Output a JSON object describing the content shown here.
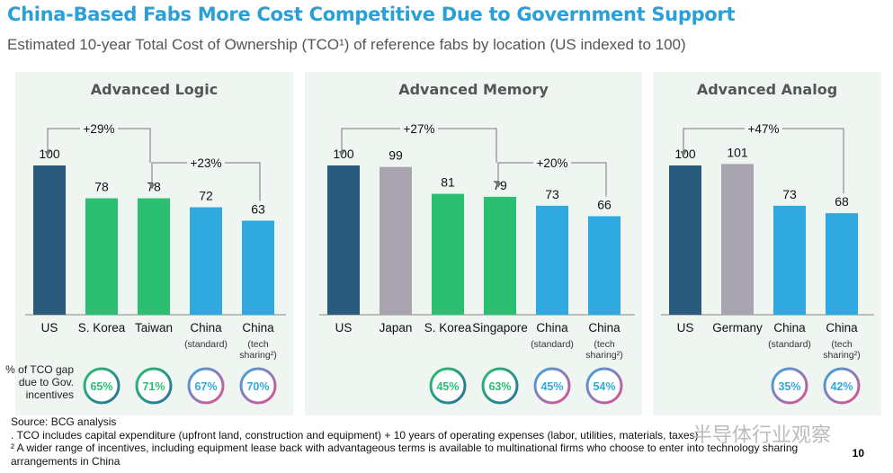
{
  "header": {
    "title": "China-Based Fabs More Cost Competitive Due to Government Support",
    "subtitle": "Estimated 10-year Total Cost of Ownership (TCO¹) of reference fabs by location (US indexed to 100)"
  },
  "gap_label": "% of TCO gap due  to Gov. incentives",
  "footer": {
    "source": "Source: BCG analysis",
    "note1": ". TCO includes capital expenditure (upfront land, construction and equipment) + 10 years of operating expenses (labor, utilities, materials, taxes)",
    "note2": "² A wider range of incentives, including equipment lease back with advantageous terms is available to multinational firms who choose to enter into technology sharing arrangements in China",
    "page": "10",
    "watermark": "半导体行业观察"
  },
  "colors": {
    "us": "#2a5b7c",
    "grey": "#a9a5b0",
    "green": "#2bbf72",
    "blue": "#2fa9e0",
    "title": "#2a9fd8"
  },
  "chart_data": [
    {
      "type": "bar",
      "title": "Advanced Logic",
      "ylim": [
        0,
        100
      ],
      "categories": [
        "US",
        "S. Korea",
        "Taiwan",
        "China",
        "China"
      ],
      "sublabels": [
        "",
        "",
        "",
        "(standard)",
        "(tech sharing²)"
      ],
      "values": [
        100,
        78,
        78,
        72,
        63
      ],
      "colors": [
        "us",
        "green",
        "green",
        "blue",
        "blue"
      ],
      "gap": [
        null,
        "65%",
        "71%",
        "67%",
        "70%"
      ],
      "annotations": [
        {
          "text": "+29%",
          "from": 2,
          "to": 0
        },
        {
          "text": "+23%",
          "from": 4,
          "to": 2
        }
      ]
    },
    {
      "type": "bar",
      "title": "Advanced Memory",
      "ylim": [
        0,
        100
      ],
      "categories": [
        "US",
        "Japan",
        "S. Korea",
        "Singapore",
        "China",
        "China"
      ],
      "sublabels": [
        "",
        "",
        "",
        "",
        "(standard)",
        "(tech sharing²)"
      ],
      "values": [
        100,
        99,
        81,
        79,
        73,
        66
      ],
      "colors": [
        "us",
        "grey",
        "green",
        "green",
        "blue",
        "blue"
      ],
      "gap": [
        null,
        null,
        "45%",
        "63%",
        "45%",
        "54%"
      ],
      "annotations": [
        {
          "text": "+27%",
          "from": 3,
          "to": 0
        },
        {
          "text": "+20%",
          "from": 5,
          "to": 3
        }
      ]
    },
    {
      "type": "bar",
      "title": "Advanced Analog",
      "ylim": [
        0,
        100
      ],
      "categories": [
        "US",
        "Germany",
        "China",
        "China"
      ],
      "sublabels": [
        "",
        "",
        "(standard)",
        "(tech sharing²)"
      ],
      "values": [
        100,
        101,
        73,
        68
      ],
      "colors": [
        "us",
        "grey",
        "blue",
        "blue"
      ],
      "gap": [
        null,
        null,
        "35%",
        "42%"
      ],
      "annotations": [
        {
          "text": "+47%",
          "from": 3,
          "to": 0
        }
      ]
    }
  ]
}
